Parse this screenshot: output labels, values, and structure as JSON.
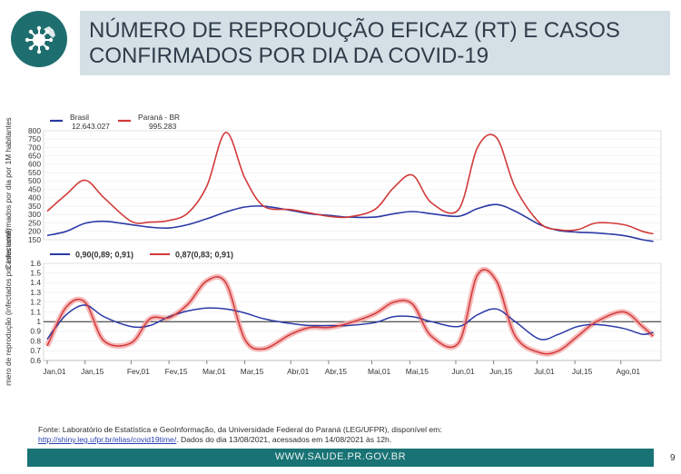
{
  "title": "NÚMERO DE REPRODUÇÃO EFICAZ (RT) E CASOS CONFIRMADOS POR DIA DA COVID-19",
  "source": {
    "line1": "Fonte: Laboratório de Estatística e GeoInformação, da Universidade Federal do Paraná (LEG/UFPR), disponível em:",
    "link": "http://shiny.leg.ufpr.br/elias/covid19time/",
    "line2_rest": ". Dados do dia 13/08/2021, acessados em 14/08/2021 às 12h."
  },
  "footer": {
    "url": "WWW.SAUDE.PR.GOV.BR",
    "page": "9"
  },
  "colors": {
    "brasil": "#2b3aa6",
    "parana": "#d23a3a",
    "band": "#f4a9a9",
    "footer": "#197375"
  },
  "icons": {
    "logo": "virus-parana-logo-icon"
  },
  "chart_data": [
    {
      "type": "line",
      "ylabel": "Casos confirmados por dia por 1M habitantes",
      "ylim": [
        150,
        800
      ],
      "yticks": [
        150,
        200,
        250,
        300,
        350,
        400,
        450,
        500,
        550,
        600,
        650,
        700,
        750,
        800
      ],
      "x": [
        0,
        7,
        14,
        21,
        31,
        38,
        45,
        52,
        59,
        66,
        73,
        80,
        90,
        97,
        104,
        111,
        121,
        128,
        135,
        142,
        152,
        159,
        166,
        173,
        182,
        189,
        196,
        203,
        213,
        220,
        224
      ],
      "xticks": [
        {
          "x": 0,
          "label": "Jan,01"
        },
        {
          "x": 14,
          "label": "Jan,15"
        },
        {
          "x": 31,
          "label": "Fev,01"
        },
        {
          "x": 45,
          "label": "Fev,15"
        },
        {
          "x": 59,
          "label": "Mar,01"
        },
        {
          "x": 73,
          "label": "Mar,15"
        },
        {
          "x": 90,
          "label": "Abr,01"
        },
        {
          "x": 104,
          "label": "Abr,15"
        },
        {
          "x": 120,
          "label": "Mai,01"
        },
        {
          "x": 134,
          "label": "Mai,15"
        },
        {
          "x": 151,
          "label": "Jun,01"
        },
        {
          "x": 165,
          "label": "Jun,15"
        },
        {
          "x": 181,
          "label": "Jul,01"
        },
        {
          "x": 195,
          "label": "Jul,15"
        },
        {
          "x": 212,
          "label": "Ago,01"
        }
      ],
      "legend_position": "top-left",
      "series": [
        {
          "name": "Brasil",
          "label2": "12.643.027",
          "color": "#2b3aa6",
          "values": [
            175,
            200,
            248,
            260,
            240,
            225,
            220,
            240,
            275,
            315,
            345,
            350,
            325,
            305,
            295,
            285,
            285,
            305,
            318,
            305,
            290,
            335,
            360,
            320,
            240,
            205,
            195,
            190,
            175,
            150,
            140
          ]
        },
        {
          "name": "Paraná - BR",
          "label2": "995.283",
          "color": "#d23a3a",
          "values": [
            320,
            420,
            505,
            400,
            260,
            255,
            265,
            310,
            470,
            790,
            520,
            350,
            330,
            310,
            290,
            285,
            330,
            460,
            535,
            370,
            330,
            700,
            760,
            460,
            250,
            210,
            210,
            250,
            240,
            200,
            185
          ]
        }
      ]
    },
    {
      "type": "line",
      "ylabel": "Número de reprodução (infectados por infectante)",
      "ylim": [
        0.6,
        1.6
      ],
      "yticks": [
        0.6,
        0.7,
        0.8,
        0.9,
        1.0,
        1.1,
        1.2,
        1.3,
        1.4,
        1.5,
        1.6
      ],
      "ytick_labels": [
        "0.6",
        "0.7",
        "0.8",
        "0.9",
        "1",
        "1.1",
        "1.2",
        "1.3",
        "1.4",
        "1.5",
        "1.6"
      ],
      "reference_line": 1.0,
      "x": [
        0,
        7,
        14,
        21,
        31,
        38,
        45,
        52,
        59,
        66,
        73,
        80,
        90,
        97,
        104,
        111,
        121,
        128,
        135,
        142,
        152,
        159,
        166,
        173,
        182,
        189,
        196,
        203,
        213,
        220,
        224
      ],
      "legend_position": "top-left",
      "series": [
        {
          "name": "0,90(0,89; 0,91)",
          "color": "#2b3aa6",
          "values": [
            0.82,
            1.07,
            1.17,
            1.05,
            0.95,
            0.96,
            1.05,
            1.11,
            1.14,
            1.13,
            1.09,
            1.03,
            0.98,
            0.96,
            0.96,
            0.96,
            0.99,
            1.05,
            1.05,
            1.0,
            0.95,
            1.07,
            1.13,
            1.0,
            0.82,
            0.87,
            0.95,
            0.97,
            0.93,
            0.87,
            0.89
          ]
        },
        {
          "name": "0,87(0,83; 0,91)",
          "color": "#d23a3a",
          "values": [
            0.75,
            1.15,
            1.2,
            0.8,
            0.78,
            1.03,
            1.04,
            1.18,
            1.42,
            1.4,
            0.82,
            0.72,
            0.87,
            0.94,
            0.94,
            0.98,
            1.08,
            1.2,
            1.18,
            0.85,
            0.78,
            1.48,
            1.42,
            0.85,
            0.68,
            0.7,
            0.85,
            1.0,
            1.1,
            0.95,
            0.85
          ]
        }
      ]
    }
  ]
}
